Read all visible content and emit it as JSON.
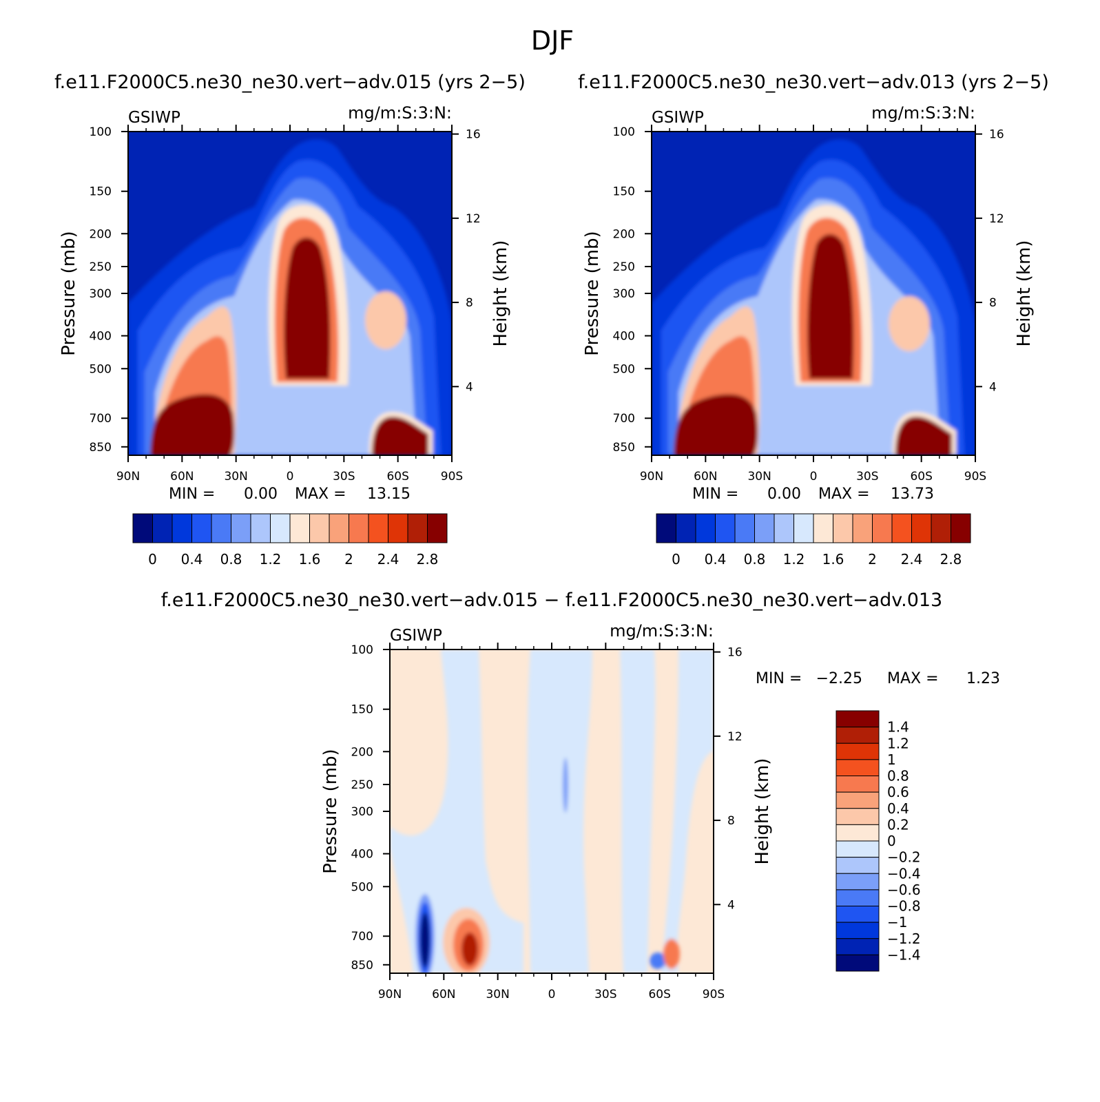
{
  "figure": {
    "title": "DJF"
  },
  "chart_data": [
    {
      "type": "heatmap",
      "title": "f.e11.F2000C5.ne30_ne30.vert−adv.015 (yrs 2−5)",
      "left_label": "GSIWP",
      "right_label": "mg/m:S:3:N:",
      "xlabel": "",
      "ylabel": "Pressure (mb)",
      "y2label": "Height (km)",
      "x_tick_labels": [
        "90N",
        "60N",
        "30N",
        "0",
        "30S",
        "60S",
        "90S"
      ],
      "y_tick_labels": [
        "100",
        "150",
        "200",
        "250",
        "300",
        "400",
        "500",
        "700",
        "850"
      ],
      "y2_tick_labels": [
        "16",
        "12",
        "8",
        "4"
      ],
      "min_text": "MIN =",
      "min_value": "0.00",
      "max_text": "MAX =",
      "max_value": "13.15",
      "colorbar": {
        "labels": [
          "0",
          "0.4",
          "0.8",
          "1.2",
          "1.6",
          "2",
          "2.4",
          "2.8"
        ],
        "colors": [
          "#000a7a",
          "#0023b4",
          "#0038dc",
          "#1f55f2",
          "#4a7af6",
          "#7b9ff8",
          "#adc6fb",
          "#d7e8fd",
          "#fde8d6",
          "#fcc8aa",
          "#f9a27a",
          "#f7794f",
          "#f4521f",
          "#df3406",
          "#b01f06",
          "#870000"
        ]
      },
      "features": [
        {
          "name": "northern lower-troposphere cloud ice maximum",
          "lat_center": 45,
          "lat_range": [
            80,
            30
          ],
          "pressure_range": [
            320,
            900
          ],
          "peak_value": 13.15
        },
        {
          "name": "tropical upper-troposphere cloud ice column",
          "lat_center": -8,
          "lat_range": [
            8,
            -28
          ],
          "pressure_range": [
            160,
            560
          ],
          "peak_value": 13.15
        },
        {
          "name": "southern mid-latitude secondary maximum",
          "lat_center": -55,
          "lat_range": [
            -45,
            -65
          ],
          "pressure_range": [
            350,
            450
          ],
          "peak_value": 1.7
        },
        {
          "name": "southern lower-troposphere cloud ice maximum",
          "lat_center": -62,
          "lat_range": [
            -45,
            -80
          ],
          "pressure_range": [
            700,
            900
          ],
          "peak_value": 13.15
        }
      ]
    },
    {
      "type": "heatmap",
      "title": "f.e11.F2000C5.ne30_ne30.vert−adv.013 (yrs 2−5)",
      "left_label": "GSIWP",
      "right_label": "mg/m:S:3:N:",
      "xlabel": "",
      "ylabel": "Pressure (mb)",
      "y2label": "Height (km)",
      "x_tick_labels": [
        "90N",
        "60N",
        "30N",
        "0",
        "30S",
        "60S",
        "90S"
      ],
      "y_tick_labels": [
        "100",
        "150",
        "200",
        "250",
        "300",
        "400",
        "500",
        "700",
        "850"
      ],
      "y2_tick_labels": [
        "16",
        "12",
        "8",
        "4"
      ],
      "min_text": "MIN =",
      "min_value": "0.00",
      "max_text": "MAX =",
      "max_value": "13.73",
      "colorbar": {
        "labels": [
          "0",
          "0.4",
          "0.8",
          "1.2",
          "1.6",
          "2",
          "2.4",
          "2.8"
        ],
        "colors": [
          "#000a7a",
          "#0023b4",
          "#0038dc",
          "#1f55f2",
          "#4a7af6",
          "#7b9ff8",
          "#adc6fb",
          "#d7e8fd",
          "#fde8d6",
          "#fcc8aa",
          "#f9a27a",
          "#f7794f",
          "#f4521f",
          "#df3406",
          "#b01f06",
          "#870000"
        ]
      },
      "features": [
        {
          "name": "northern lower-troposphere cloud ice maximum",
          "lat_center": 45,
          "lat_range": [
            80,
            30
          ],
          "pressure_range": [
            320,
            900
          ],
          "peak_value": 13.73
        },
        {
          "name": "tropical upper-troposphere cloud ice column",
          "lat_center": -8,
          "lat_range": [
            8,
            -28
          ],
          "pressure_range": [
            160,
            560
          ],
          "peak_value": 13.73
        },
        {
          "name": "southern mid-latitude secondary maximum",
          "lat_center": -55,
          "lat_range": [
            -45,
            -65
          ],
          "pressure_range": [
            350,
            450
          ],
          "peak_value": 1.7
        },
        {
          "name": "southern lower-troposphere cloud ice maximum",
          "lat_center": -62,
          "lat_range": [
            -45,
            -80
          ],
          "pressure_range": [
            700,
            900
          ],
          "peak_value": 13.73
        }
      ]
    },
    {
      "type": "heatmap",
      "title": "f.e11.F2000C5.ne30_ne30.vert−adv.015 − f.e11.F2000C5.ne30_ne30.vert−adv.013",
      "left_label": "GSIWP",
      "right_label": "mg/m:S:3:N:",
      "xlabel": "",
      "ylabel": "Pressure (mb)",
      "y2label": "Height (km)",
      "x_tick_labels": [
        "90N",
        "60N",
        "30N",
        "0",
        "30S",
        "60S",
        "90S"
      ],
      "y_tick_labels": [
        "100",
        "150",
        "200",
        "250",
        "300",
        "400",
        "500",
        "700",
        "850"
      ],
      "y2_tick_labels": [
        "16",
        "12",
        "8",
        "4"
      ],
      "min_text": "MIN =",
      "min_value": "−2.25",
      "max_text": "MAX =",
      "max_value": "1.23",
      "colorbar": {
        "labels": [
          "1.4",
          "1.2",
          "1",
          "0.8",
          "0.6",
          "0.4",
          "0.2",
          "0",
          "−0.2",
          "−0.4",
          "−0.6",
          "−0.8",
          "−1",
          "−1.2",
          "−1.4"
        ],
        "colors": [
          "#870000",
          "#b01f06",
          "#df3406",
          "#f4521f",
          "#f7794f",
          "#f9a27a",
          "#fcc8aa",
          "#fde8d6",
          "#d7e8fd",
          "#adc6fb",
          "#7b9ff8",
          "#4a7af6",
          "#1f55f2",
          "#0038dc",
          "#0023b4",
          "#000a7a"
        ]
      },
      "features": [
        {
          "name": "negative anomaly core near 70N",
          "lat_center": 70,
          "pressure_range": [
            650,
            900
          ],
          "value": -2.25
        },
        {
          "name": "positive anomaly near 50N",
          "lat_center": 50,
          "pressure_range": [
            620,
            900
          ],
          "value": 1.23
        },
        {
          "name": "small negative anomaly near 60S",
          "lat_center": -60,
          "pressure_range": [
            780,
            900
          ],
          "value": -0.6
        },
        {
          "name": "small positive anomaly near 70S",
          "lat_center": -70,
          "pressure_range": [
            700,
            900
          ],
          "value": 0.8
        }
      ]
    }
  ]
}
